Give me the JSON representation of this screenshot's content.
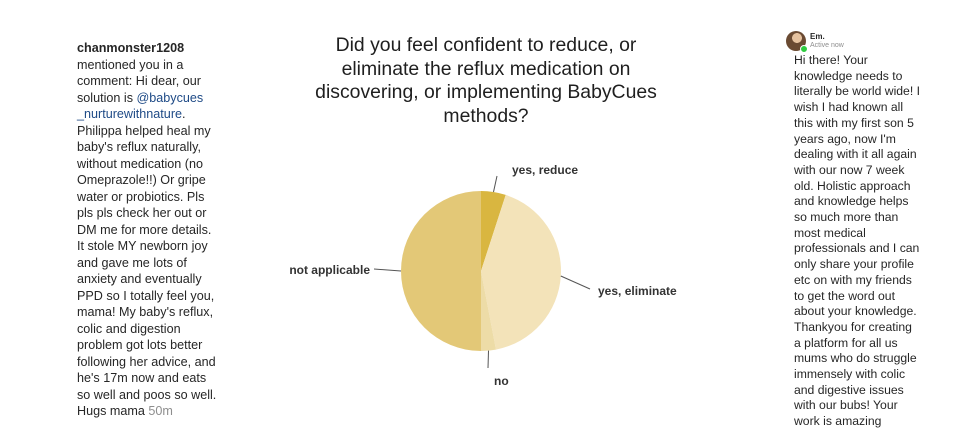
{
  "comment": {
    "username": "chanmonster1208",
    "text_before": "mentioned you in a comment: Hi dear, our solution is ",
    "mention": "@babycues _nurturewithnature",
    "text_after": ". Philippa helped heal my baby's reflux naturally, without medication (no Omeprazole!!) Or gripe water or probiotics. Pls pls pls check her out or DM me for more details. It stole MY newborn joy and gave me lots of anxiety and eventually PPD so I totally feel you, mama! My baby's reflux, colic and digestion problem got lots better following her advice, and he's 17m now and eats so well and poos so well. Hugs mama ",
    "time": "50m",
    "mention_color": "#1e4a86"
  },
  "dm": {
    "name": "Em.",
    "status": "Active now",
    "message": "Hi there! Your knowledge needs to literally be world wide! I wish I had known all this with my first son 5 years ago, now I'm dealing with it all again with our now 7 week old. Holistic approach and knowledge helps so much more than most medical professionals and I can only share your profile etc on with my friends to get the word out about your knowledge. Thankyou for creating a platform for all us mums who do struggle immensely with colic and digestive issues with our bubs! Your work is amazing",
    "online_color": "#2ecc40"
  },
  "chart_data": {
    "type": "pie",
    "title": "Did you feel confident to reduce, or eliminate the reflux medication on discovering, or implementing BabyCues methods?",
    "legend": "none",
    "slices": [
      {
        "label": "yes, reduce",
        "value": 5,
        "color": "#d9b640"
      },
      {
        "label": "yes, eliminate",
        "value": 42,
        "color": "#f3e3b9"
      },
      {
        "label": "no",
        "value": 3,
        "color": "#eddca7"
      },
      {
        "label": "not applicable",
        "value": 50,
        "color": "#e3c877"
      }
    ]
  }
}
